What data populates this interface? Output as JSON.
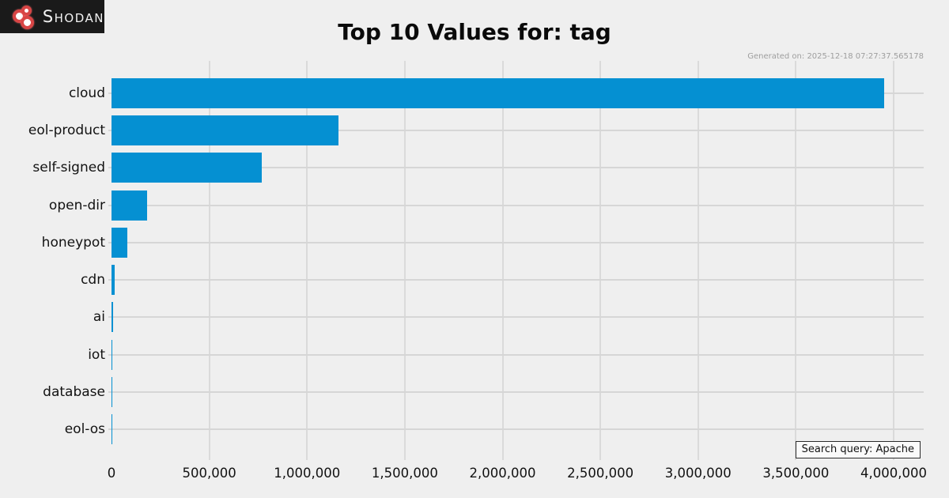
{
  "header": {
    "logo_text": "Shodan",
    "title": "Top 10 Values for: tag",
    "generated_on": "Generated on: 2025-12-18 07:27:37.565178"
  },
  "footer": {
    "search_query_label": "Search query: Apache"
  },
  "colors": {
    "background": "#efefef",
    "bar": "#0590D2",
    "gridline": "#d8d8d8",
    "logo_background": "#1a1a1a",
    "logo_red": "#d84545"
  },
  "chart_data": {
    "type": "bar",
    "orientation": "horizontal",
    "title": "Top 10 Values for: tag",
    "categories": [
      "cloud",
      "eol-product",
      "self-signed",
      "open-dir",
      "honeypot",
      "cdn",
      "ai",
      "iot",
      "database",
      "eol-os"
    ],
    "values": [
      3950000,
      1160000,
      770000,
      182000,
      81000,
      17000,
      8000,
      3000,
      1500,
      800
    ],
    "xlabel": "",
    "ylabel": "",
    "xlim": [
      0,
      4150000
    ],
    "x_ticks": [
      0,
      500000,
      1000000,
      1500000,
      2000000,
      2500000,
      3000000,
      3500000,
      4000000
    ],
    "x_tick_labels": [
      "0",
      "500,000",
      "1,000,000",
      "1,500,000",
      "2,000,000",
      "2,500,000",
      "3,000,000",
      "3,500,000",
      "4,000,000"
    ],
    "grid": true,
    "legend": false
  }
}
